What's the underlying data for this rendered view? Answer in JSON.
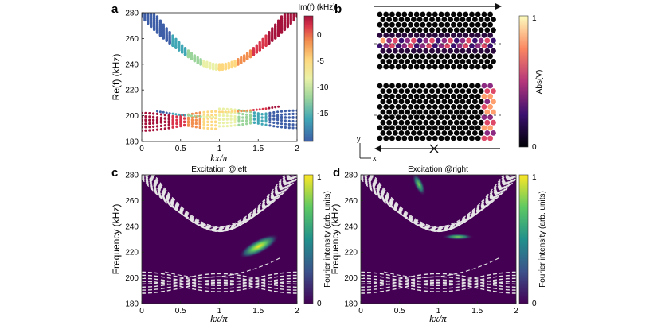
{
  "panels": {
    "a": {
      "letter": "a",
      "ylabel": "Re(f) (kHz)",
      "xlabel": "kx/π",
      "colorbar_title": "Im(f) (kHz)",
      "colorbar_ticks": [
        "0",
        "-5",
        "-10",
        "-15"
      ]
    },
    "b": {
      "letter": "b",
      "colorbar_label": "Abs(V)",
      "colorbar_ticks": [
        "1",
        "0"
      ],
      "axis_y": "y",
      "axis_x": "x"
    },
    "c": {
      "letter": "c",
      "title": "Excitation @left",
      "ylabel": "Frequency (kHz)",
      "xlabel": "kx/π",
      "colorbar_label": "Fourier intensity (arb. units)",
      "colorbar_ticks": [
        "1",
        "0"
      ]
    },
    "d": {
      "letter": "d",
      "title": "Excitation @right",
      "ylabel": "Frequency (kHz)",
      "xlabel": "kx/π",
      "colorbar_label": "Fourier intensity (arb. units)",
      "colorbar_ticks": [
        "1",
        "0"
      ]
    }
  },
  "chart_data": [
    {
      "panel": "a",
      "type": "scatter",
      "xlabel": "kx/π",
      "ylabel": "Re(f) (kHz)",
      "xlim": [
        0,
        2
      ],
      "ylim": [
        180,
        280
      ],
      "x_ticks": [
        "0",
        "0.5",
        "1",
        "1.5",
        "2"
      ],
      "y_ticks": [
        "180",
        "200",
        "220",
        "240",
        "260",
        "280"
      ],
      "colorscale": "Im(f)",
      "color_range": [
        -19,
        3
      ]
    },
    {
      "panel": "c",
      "type": "heatmap",
      "xlabel": "kx/π",
      "ylabel": "Frequency (kHz)",
      "xlim": [
        0,
        2
      ],
      "ylim": [
        180,
        280
      ],
      "x_ticks": [
        "0",
        "0.5",
        "1",
        "1.5",
        "2"
      ],
      "y_ticks": [
        "180",
        "200",
        "220",
        "240",
        "260",
        "280"
      ],
      "hotspot": {
        "kx": 1.5,
        "f": 223
      }
    },
    {
      "panel": "d",
      "type": "heatmap",
      "xlabel": "kx/π",
      "ylabel": "Frequency (kHz)",
      "xlim": [
        0,
        2
      ],
      "ylim": [
        180,
        280
      ],
      "x_ticks": [
        "0",
        "0.5",
        "1",
        "1.5",
        "2"
      ],
      "y_ticks": [
        "180",
        "200",
        "220",
        "240",
        "260",
        "280"
      ],
      "hotspot": {
        "kx": 0.7,
        "f": 275
      }
    }
  ]
}
